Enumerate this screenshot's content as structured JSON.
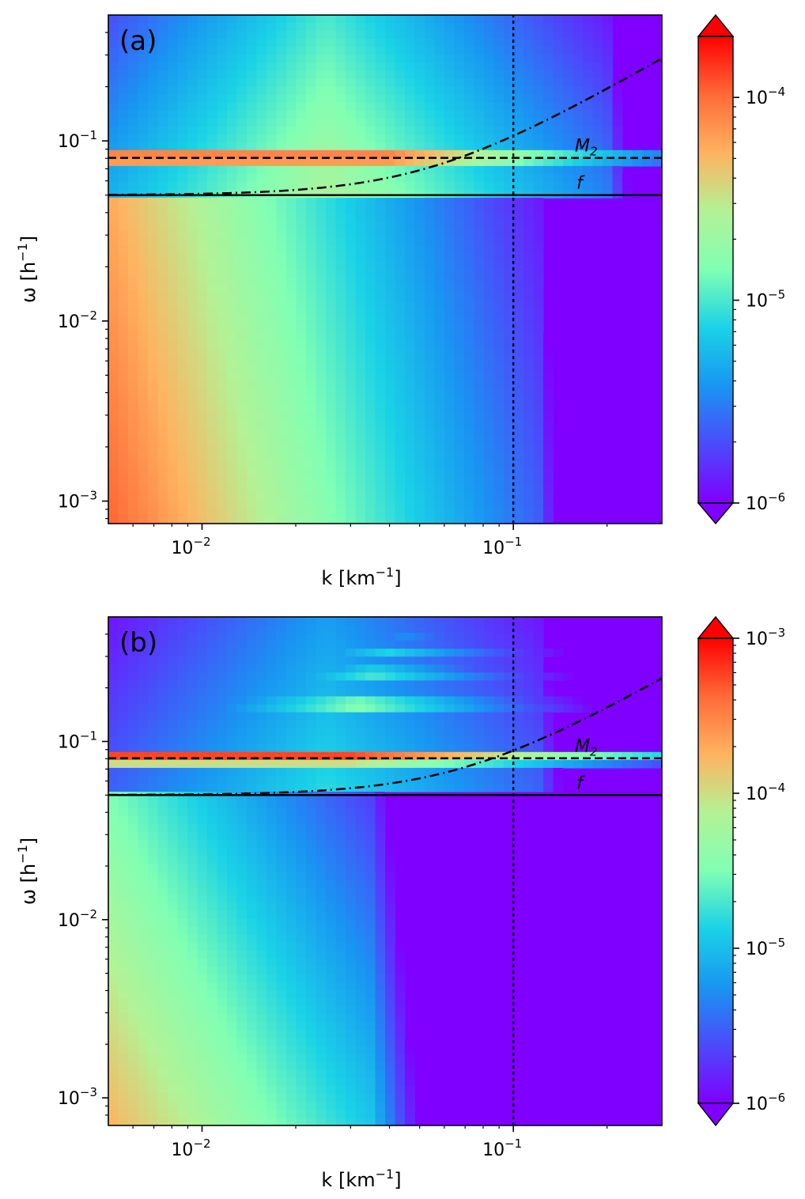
{
  "chart_data": [
    {
      "type": "heatmap",
      "panel_label": "(a)",
      "xlabel": "k [km",
      "xlabel_exp": "−1",
      "xlabel_end": "]",
      "ylabel": "ω [h",
      "ylabel_exp": "−1",
      "ylabel_end": "]",
      "x_scale": "log",
      "y_scale": "log",
      "xlim": [
        0.005,
        0.3
      ],
      "ylim": [
        0.00075,
        0.5
      ],
      "x_ticks": [
        {
          "value": 0.01,
          "base": "10",
          "exp": "−2"
        },
        {
          "value": 0.1,
          "base": "10",
          "exp": "−1"
        }
      ],
      "y_ticks": [
        {
          "value": 0.001,
          "base": "10",
          "exp": "−3"
        },
        {
          "value": 0.01,
          "base": "10",
          "exp": "−2"
        },
        {
          "value": 0.1,
          "base": "10",
          "exp": "−1"
        }
      ],
      "lines": {
        "M2": {
          "value": 0.0805,
          "label": "M",
          "sub": "2",
          "style": "dashed"
        },
        "f": {
          "value": 0.05,
          "label": "f",
          "style": "solid"
        },
        "k_cut": {
          "value": 0.1,
          "style": "dotted"
        },
        "dispersion": {
          "style": "dash-dot",
          "scale_k": 0.053
        }
      },
      "colorbar": {
        "scale": "log",
        "min": 1e-06,
        "max": 0.0002,
        "ticks": [
          {
            "value": 1e-06,
            "base": "10",
            "exp": "−6"
          },
          {
            "value": 1e-05,
            "base": "10",
            "exp": "−5"
          },
          {
            "value": 0.0001,
            "base": "10",
            "exp": "−4"
          }
        ],
        "extend": "both",
        "colormap": "rainbow"
      }
    },
    {
      "type": "heatmap",
      "panel_label": "(b)",
      "xlabel": "k [km",
      "xlabel_exp": "−1",
      "xlabel_end": "]",
      "ylabel": "ω [h",
      "ylabel_exp": "−1",
      "ylabel_end": "]",
      "x_scale": "log",
      "y_scale": "log",
      "xlim": [
        0.005,
        0.3
      ],
      "ylim": [
        0.0007,
        0.5
      ],
      "x_ticks": [
        {
          "value": 0.01,
          "base": "10",
          "exp": "−2"
        },
        {
          "value": 0.1,
          "base": "10",
          "exp": "−1"
        }
      ],
      "y_ticks": [
        {
          "value": 0.001,
          "base": "10",
          "exp": "−3"
        },
        {
          "value": 0.01,
          "base": "10",
          "exp": "−2"
        },
        {
          "value": 0.1,
          "base": "10",
          "exp": "−1"
        }
      ],
      "lines": {
        "M2": {
          "value": 0.0805,
          "label": "M",
          "sub": "2",
          "style": "dashed"
        },
        "f": {
          "value": 0.05,
          "label": "f",
          "style": "solid"
        },
        "k_cut": {
          "value": 0.1,
          "style": "dotted"
        },
        "dispersion": {
          "style": "dash-dot",
          "scale_k": 0.068
        }
      },
      "colorbar": {
        "scale": "log",
        "min": 1e-06,
        "max": 0.001,
        "ticks": [
          {
            "value": 1e-06,
            "base": "10",
            "exp": "−6"
          },
          {
            "value": 1e-05,
            "base": "10",
            "exp": "−5"
          },
          {
            "value": 0.0001,
            "base": "10",
            "exp": "−4"
          },
          {
            "value": 0.001,
            "base": "10",
            "exp": "−3"
          }
        ],
        "extend": "both",
        "colormap": "rainbow"
      }
    }
  ]
}
